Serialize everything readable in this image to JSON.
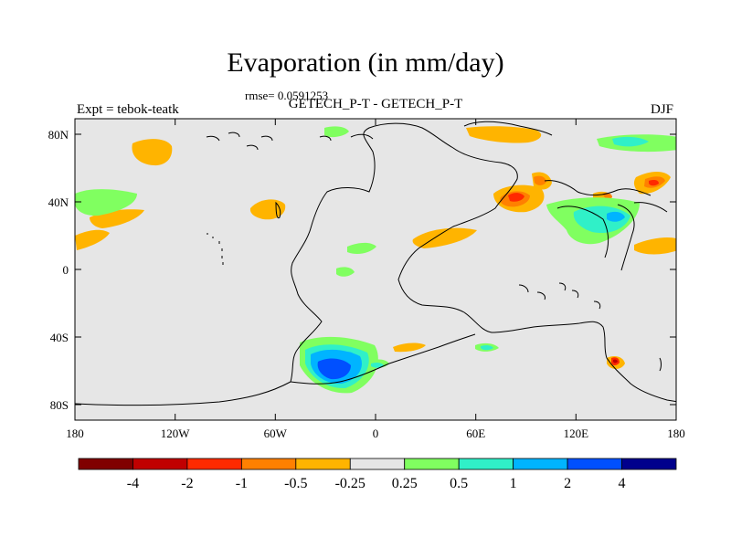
{
  "title": "Evaporation (in mm/day)",
  "rmse_text": "rmse= 0.0591253",
  "subtitle": "GETECH_P-T - GETECH_P-T",
  "expt_label": "Expt = tebok-teatk",
  "season": "DJF",
  "axes": {
    "lat_ticks": [
      "80N",
      "40N",
      "0",
      "40S",
      "80S"
    ],
    "lon_ticks": [
      "180",
      "120W",
      "60W",
      "0",
      "60E",
      "120E",
      "180"
    ]
  },
  "colorbar": {
    "levels": [
      "-4",
      "-2",
      "-1",
      "-0.5",
      "-0.25",
      "0.25",
      "0.5",
      "1",
      "2",
      "4"
    ],
    "colors": [
      "#800000",
      "#c00000",
      "#ff2a00",
      "#ff8000",
      "#ffb400",
      "#e6e6e6",
      "#80ff60",
      "#30f0c8",
      "#00b4ff",
      "#0050ff",
      "#00008c"
    ]
  },
  "map": {
    "background_color": "#e6e6e6",
    "coastline_color": "#000000"
  }
}
